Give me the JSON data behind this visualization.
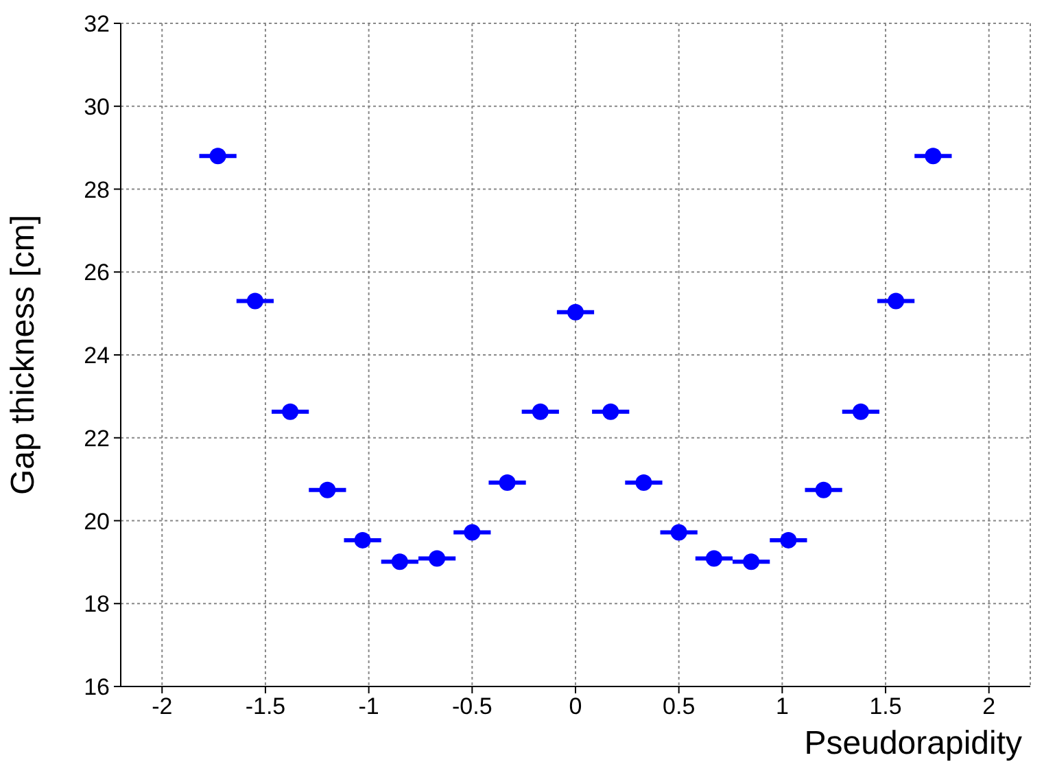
{
  "chart_data": {
    "type": "scatter",
    "xlabel": "Pseudorapidity",
    "ylabel": "Gap thickness [cm]",
    "x": [
      -1.73,
      -1.55,
      -1.38,
      -1.2,
      -1.03,
      -0.85,
      -0.67,
      -0.5,
      -0.33,
      -0.17,
      0,
      0.17,
      0.33,
      0.5,
      0.67,
      0.85,
      1.03,
      1.2,
      1.38,
      1.55,
      1.73
    ],
    "values": [
      28.8,
      25.3,
      22.63,
      20.74,
      19.53,
      19.01,
      19.09,
      19.72,
      20.92,
      22.63,
      25.03,
      22.63,
      20.92,
      19.72,
      19.09,
      19.01,
      19.53,
      20.74,
      22.63,
      25.3,
      28.8
    ],
    "xerrors": [
      0.09,
      0.09,
      0.09,
      0.09,
      0.09,
      0.09,
      0.09,
      0.09,
      0.09,
      0.09,
      0.09,
      0.09,
      0.09,
      0.09,
      0.09,
      0.09,
      0.09,
      0.09,
      0.09,
      0.09,
      0.09
    ],
    "color": "#0000ff",
    "marker": "circle",
    "xlim": [
      -2.2,
      2.2
    ],
    "xticks": [
      -2,
      -1.5,
      -1,
      -0.5,
      0,
      0.5,
      1,
      1.5,
      2
    ],
    "ylim": [
      16,
      32
    ],
    "yticks": [
      16,
      18,
      20,
      22,
      24,
      26,
      28,
      30,
      32
    ],
    "grid": true
  }
}
